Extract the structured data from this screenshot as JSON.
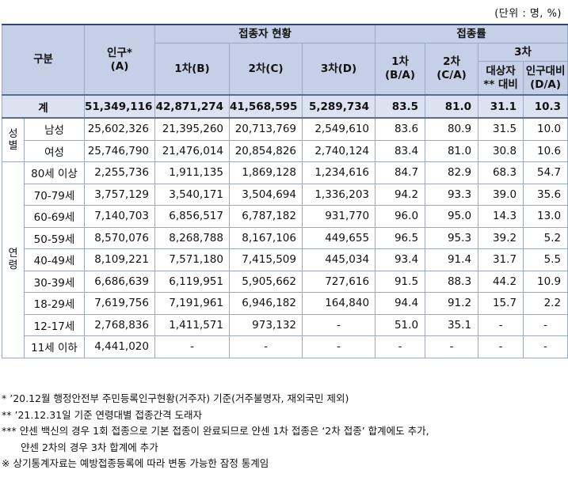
{
  "unit": "(단위 : 명, %)",
  "header": {
    "category": "구분",
    "population": "인구*",
    "population_sub": "(A)",
    "vaccinated_status": "접종자 현황",
    "dose1": "1차(B)",
    "dose2": "2차(C)",
    "dose3": "3차(D)",
    "rate": "접종률",
    "rate1": "1차",
    "rate1_sub": "(B/A)",
    "rate2": "2차",
    "rate2_sub": "(C/A)",
    "rate3": "3차",
    "rate3_target": "대상자 ** 대비",
    "rate3_pop": "인구대비",
    "rate3_pop_sub": "(D/A)"
  },
  "total": {
    "label": "계",
    "population": "51,349,116",
    "dose1": "42,871,274",
    "dose2": "41,568,595",
    "dose3": "5,289,734",
    "rate1": "83.5",
    "rate2": "81.0",
    "rate3_target": "31.1",
    "rate3_pop": "10.3"
  },
  "groups": {
    "sex": "성별",
    "age": "연령"
  },
  "sex_rows": [
    {
      "label": "남성",
      "population": "25,602,326",
      "dose1": "21,395,260",
      "dose2": "20,713,769",
      "dose3": "2,549,610",
      "rate1": "83.6",
      "rate2": "80.9",
      "rate3_target": "31.5",
      "rate3_pop": "10.0"
    },
    {
      "label": "여성",
      "population": "25,746,790",
      "dose1": "21,476,014",
      "dose2": "20,854,826",
      "dose3": "2,740,124",
      "rate1": "83.4",
      "rate2": "81.0",
      "rate3_target": "30.8",
      "rate3_pop": "10.6"
    }
  ],
  "age_rows": [
    {
      "label": "80세 이상",
      "population": "2,255,736",
      "dose1": "1,911,135",
      "dose2": "1,869,128",
      "dose3": "1,234,616",
      "rate1": "84.7",
      "rate2": "82.9",
      "rate3_target": "68.3",
      "rate3_pop": "54.7"
    },
    {
      "label": "70-79세",
      "population": "3,757,129",
      "dose1": "3,540,171",
      "dose2": "3,504,694",
      "dose3": "1,336,203",
      "rate1": "94.2",
      "rate2": "93.3",
      "rate3_target": "39.0",
      "rate3_pop": "35.6"
    },
    {
      "label": "60-69세",
      "population": "7,140,703",
      "dose1": "6,856,517",
      "dose2": "6,787,182",
      "dose3": "931,770",
      "rate1": "96.0",
      "rate2": "95.0",
      "rate3_target": "14.3",
      "rate3_pop": "13.0"
    },
    {
      "label": "50-59세",
      "population": "8,570,076",
      "dose1": "8,268,788",
      "dose2": "8,167,106",
      "dose3": "449,655",
      "rate1": "96.5",
      "rate2": "95.3",
      "rate3_target": "39.2",
      "rate3_pop": "5.2"
    },
    {
      "label": "40-49세",
      "population": "8,109,221",
      "dose1": "7,571,180",
      "dose2": "7,415,509",
      "dose3": "445,034",
      "rate1": "93.4",
      "rate2": "91.4",
      "rate3_target": "31.7",
      "rate3_pop": "5.5"
    },
    {
      "label": "30-39세",
      "population": "6,686,639",
      "dose1": "6,119,951",
      "dose2": "5,905,662",
      "dose3": "727,616",
      "rate1": "91.5",
      "rate2": "88.3",
      "rate3_target": "44.2",
      "rate3_pop": "10.9"
    },
    {
      "label": "18-29세",
      "population": "7,619,756",
      "dose1": "7,191,961",
      "dose2": "6,946,182",
      "dose3": "164,840",
      "rate1": "94.4",
      "rate2": "91.2",
      "rate3_target": "15.7",
      "rate3_pop": "2.2"
    },
    {
      "label": "12-17세",
      "population": "2,768,836",
      "dose1": "1,411,571",
      "dose2": "973,132",
      "dose3": "-",
      "rate1": "51.0",
      "rate2": "35.1",
      "rate3_target": "-",
      "rate3_pop": "-"
    },
    {
      "label": "11세 이하",
      "population": "4,441,020",
      "dose1": "-",
      "dose2": "-",
      "dose3": "-",
      "rate1": "-",
      "rate2": "-",
      "rate3_target": "-",
      "rate3_pop": "-"
    }
  ],
  "notes": [
    "* ’20.12월 행정안전부 주민등록인구현황(거주자) 기준(거주불명자, 재외국민 제외)",
    "** ’21.12.31일 기준 연령대별 접종간격 도래자",
    "*** 얀센 백신의 경우 1회 접종으로 기본 접종이 완료되므로 얀센 1차 접종은 ‘2차 접종’ 합계에도 추가,",
    "얀센 2차의 경우 3차 합계에 추가",
    "※ 상기통계자료는 예방접종등록에 따라 변동 가능한 잠정 통계임"
  ]
}
